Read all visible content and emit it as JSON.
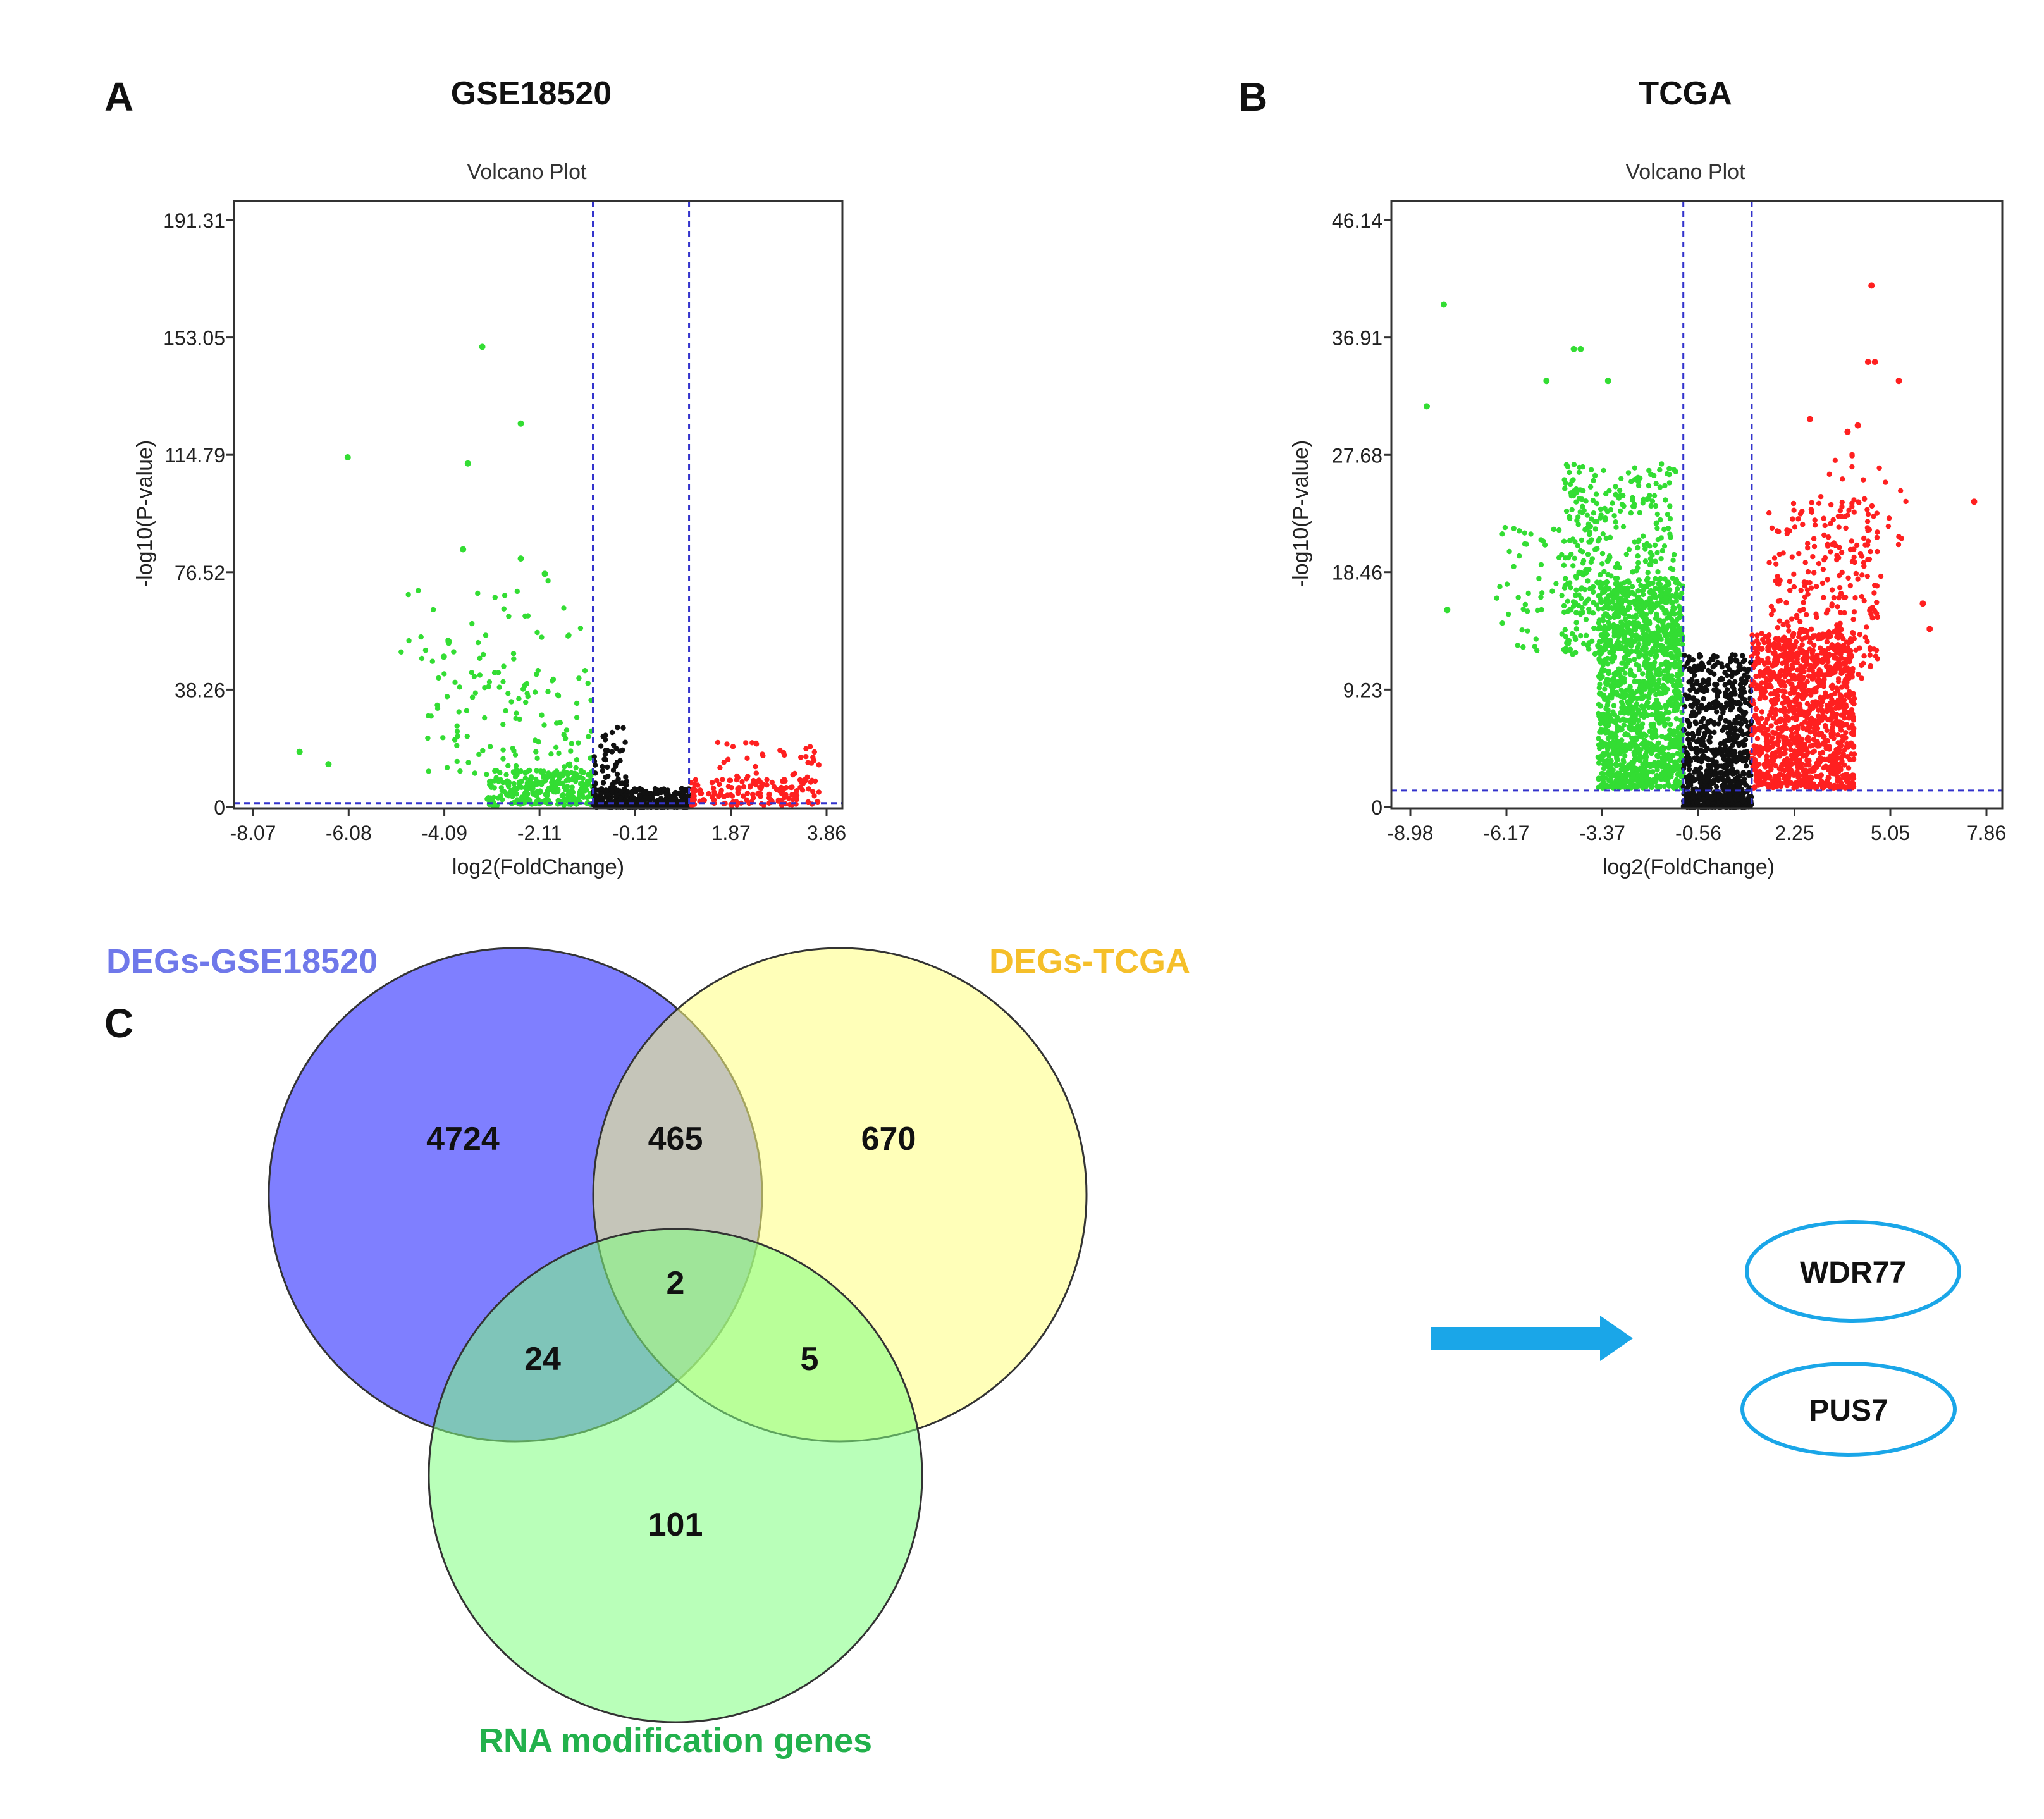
{
  "panels": {
    "a": {
      "letter": "A",
      "title": "GSE18520"
    },
    "b": {
      "letter": "B",
      "title": "TCGA"
    },
    "c": {
      "letter": "C"
    }
  },
  "colors": {
    "up": "#ff2020",
    "down": "#33dd33",
    "ns": "#111111",
    "threshold": "#3333cc",
    "gse": "#7f7fff",
    "tcga": "#ffff80",
    "rna": "#80ff80",
    "gse_label": "#6f78ea",
    "tcga_label": "#f5bf2a",
    "rna_label": "#22b14c",
    "arrow": "#1aa6e8"
  },
  "chart_data": [
    {
      "type": "scatter",
      "panel": "A",
      "dataset": "GSE18520",
      "title": "Volcano Plot",
      "xlabel": "log2(FoldChange)",
      "ylabel": "-log10(P-value)",
      "xlim": [
        -8.07,
        3.86
      ],
      "ylim": [
        0,
        191.31
      ],
      "xticks": [
        -8.07,
        -6.08,
        -4.09,
        -2.11,
        -0.12,
        1.87,
        3.86
      ],
      "yticks": [
        0,
        38.26,
        76.52,
        114.79,
        153.05,
        191.31
      ],
      "xtick_labels": [
        "-8.07",
        "-6.08",
        "-4.09",
        "-2.11",
        "-0.12",
        "1.87",
        "3.86"
      ],
      "ytick_labels": [
        "0",
        "38.26",
        "76.52",
        "114.79",
        "153.05",
        "191.31"
      ],
      "thresholds": {
        "x": [
          -1.0,
          1.0
        ],
        "y": 1.3
      },
      "highlighted_points": [
        {
          "x": -6.1,
          "y": 114
        },
        {
          "x": -3.3,
          "y": 150
        },
        {
          "x": -2.5,
          "y": 125
        },
        {
          "x": -3.6,
          "y": 112
        },
        {
          "x": -3.7,
          "y": 84
        },
        {
          "x": -2.5,
          "y": 81
        },
        {
          "x": -7.1,
          "y": 18
        },
        {
          "x": -6.5,
          "y": 14
        },
        {
          "x": -4.0,
          "y": 54
        },
        {
          "x": -4.1,
          "y": 49
        },
        {
          "x": -2.0,
          "y": 76
        }
      ],
      "series": [
        {
          "name": "down",
          "color_key": "down",
          "groups": [
            {
              "n": 260,
              "x": [
                -3.2,
                -1.0
              ],
              "y": [
                0.5,
                12
              ],
              "shape": 1.0
            },
            {
              "n": 110,
              "x": [
                -4.5,
                -1.0
              ],
              "y": [
                10,
                45
              ],
              "shape": 1.5
            },
            {
              "n": 40,
              "x": [
                -5.0,
                -1.0
              ],
              "y": [
                40,
                75
              ],
              "shape": 1.2
            }
          ]
        },
        {
          "name": "not significant",
          "color_key": "ns",
          "groups": [
            {
              "n": 380,
              "x": [
                -1.0,
                1.0
              ],
              "y": [
                0,
                6
              ],
              "shape": 2.0
            },
            {
              "n": 60,
              "x": [
                -1.0,
                -0.3
              ],
              "y": [
                5,
                26
              ],
              "shape": 1.6
            }
          ]
        },
        {
          "name": "up",
          "color_key": "up",
          "groups": [
            {
              "n": 140,
              "x": [
                1.0,
                3.7
              ],
              "y": [
                0.5,
                9
              ],
              "shape": 1.2
            },
            {
              "n": 45,
              "x": [
                1.5,
                3.7
              ],
              "y": [
                5,
                22
              ],
              "shape": 1.0
            }
          ]
        }
      ]
    },
    {
      "type": "scatter",
      "panel": "B",
      "dataset": "TCGA",
      "title": "Volcano Plot",
      "xlabel": "log2(FoldChange)",
      "ylabel": "-log10(P-value)",
      "xlim": [
        -8.98,
        7.86
      ],
      "ylim": [
        0,
        46.14
      ],
      "xticks": [
        -8.98,
        -6.17,
        -3.37,
        -0.56,
        2.25,
        5.05,
        7.86
      ],
      "yticks": [
        0,
        9.23,
        18.46,
        27.68,
        36.91,
        46.14
      ],
      "xtick_labels": [
        "-8.98",
        "-6.17",
        "-3.37",
        "-0.56",
        "2.25",
        "5.05",
        "7.86"
      ],
      "ytick_labels": [
        "0",
        "9.23",
        "18.46",
        "27.68",
        "36.91",
        "46.14"
      ],
      "thresholds": {
        "x": [
          -1.0,
          1.0
        ],
        "y": 1.3
      },
      "highlighted_points": [
        {
          "x": -8.0,
          "y": 39.5
        },
        {
          "x": -8.5,
          "y": 31.5
        },
        {
          "x": -4.2,
          "y": 36
        },
        {
          "x": -4.0,
          "y": 36
        },
        {
          "x": -5.0,
          "y": 33.5
        },
        {
          "x": -3.2,
          "y": 33.5
        },
        {
          "x": -7.9,
          "y": 15.5
        },
        {
          "x": 4.5,
          "y": 41
        },
        {
          "x": 4.4,
          "y": 35
        },
        {
          "x": 4.6,
          "y": 35
        },
        {
          "x": 5.3,
          "y": 33.5
        },
        {
          "x": 7.5,
          "y": 24
        },
        {
          "x": 6.0,
          "y": 16
        },
        {
          "x": 6.2,
          "y": 14
        },
        {
          "x": 2.7,
          "y": 30.5
        },
        {
          "x": 4.1,
          "y": 30
        },
        {
          "x": 3.8,
          "y": 29.5
        }
      ],
      "series": [
        {
          "name": "down",
          "color_key": "down",
          "groups": [
            {
              "n": 1400,
              "x": [
                -3.5,
                -1.0
              ],
              "y": [
                1.5,
                18
              ],
              "shape": 1.3
            },
            {
              "n": 400,
              "x": [
                -4.5,
                -1.2
              ],
              "y": [
                12,
                27
              ],
              "shape": 1.2
            },
            {
              "n": 60,
              "x": [
                -6.5,
                -3.5
              ],
              "y": [
                12,
                22
              ],
              "shape": 1.0
            }
          ]
        },
        {
          "name": "not significant",
          "color_key": "ns",
          "groups": [
            {
              "n": 900,
              "x": [
                -1.0,
                1.0
              ],
              "y": [
                0,
                12
              ],
              "shape": 2.2
            }
          ]
        },
        {
          "name": "up",
          "color_key": "up",
          "groups": [
            {
              "n": 1100,
              "x": [
                1.0,
                4.0
              ],
              "y": [
                1.5,
                14
              ],
              "shape": 1.3
            },
            {
              "n": 300,
              "x": [
                1.5,
                4.7
              ],
              "y": [
                10,
                24
              ],
              "shape": 1.2
            },
            {
              "n": 30,
              "x": [
                3.0,
                5.6
              ],
              "y": [
                18,
                28
              ],
              "shape": 1.0
            }
          ]
        }
      ]
    },
    {
      "type": "venn",
      "panel": "C",
      "sets": [
        {
          "name": "DEGs-GSE18520",
          "color_key": "gse",
          "label_color_key": "gse_label"
        },
        {
          "name": "DEGs-TCGA",
          "color_key": "tcga",
          "label_color_key": "tcga_label"
        },
        {
          "name": "RNA modification genes",
          "color_key": "rna",
          "label_color_key": "rna_label"
        }
      ],
      "regions": {
        "gse_only": 4724,
        "gse_tcga": 465,
        "tcga_only": 670,
        "all_three": 2,
        "gse_rna": 24,
        "tcga_rna": 5,
        "rna_only": 101
      },
      "result_genes": [
        "WDR77",
        "PUS7"
      ]
    }
  ]
}
